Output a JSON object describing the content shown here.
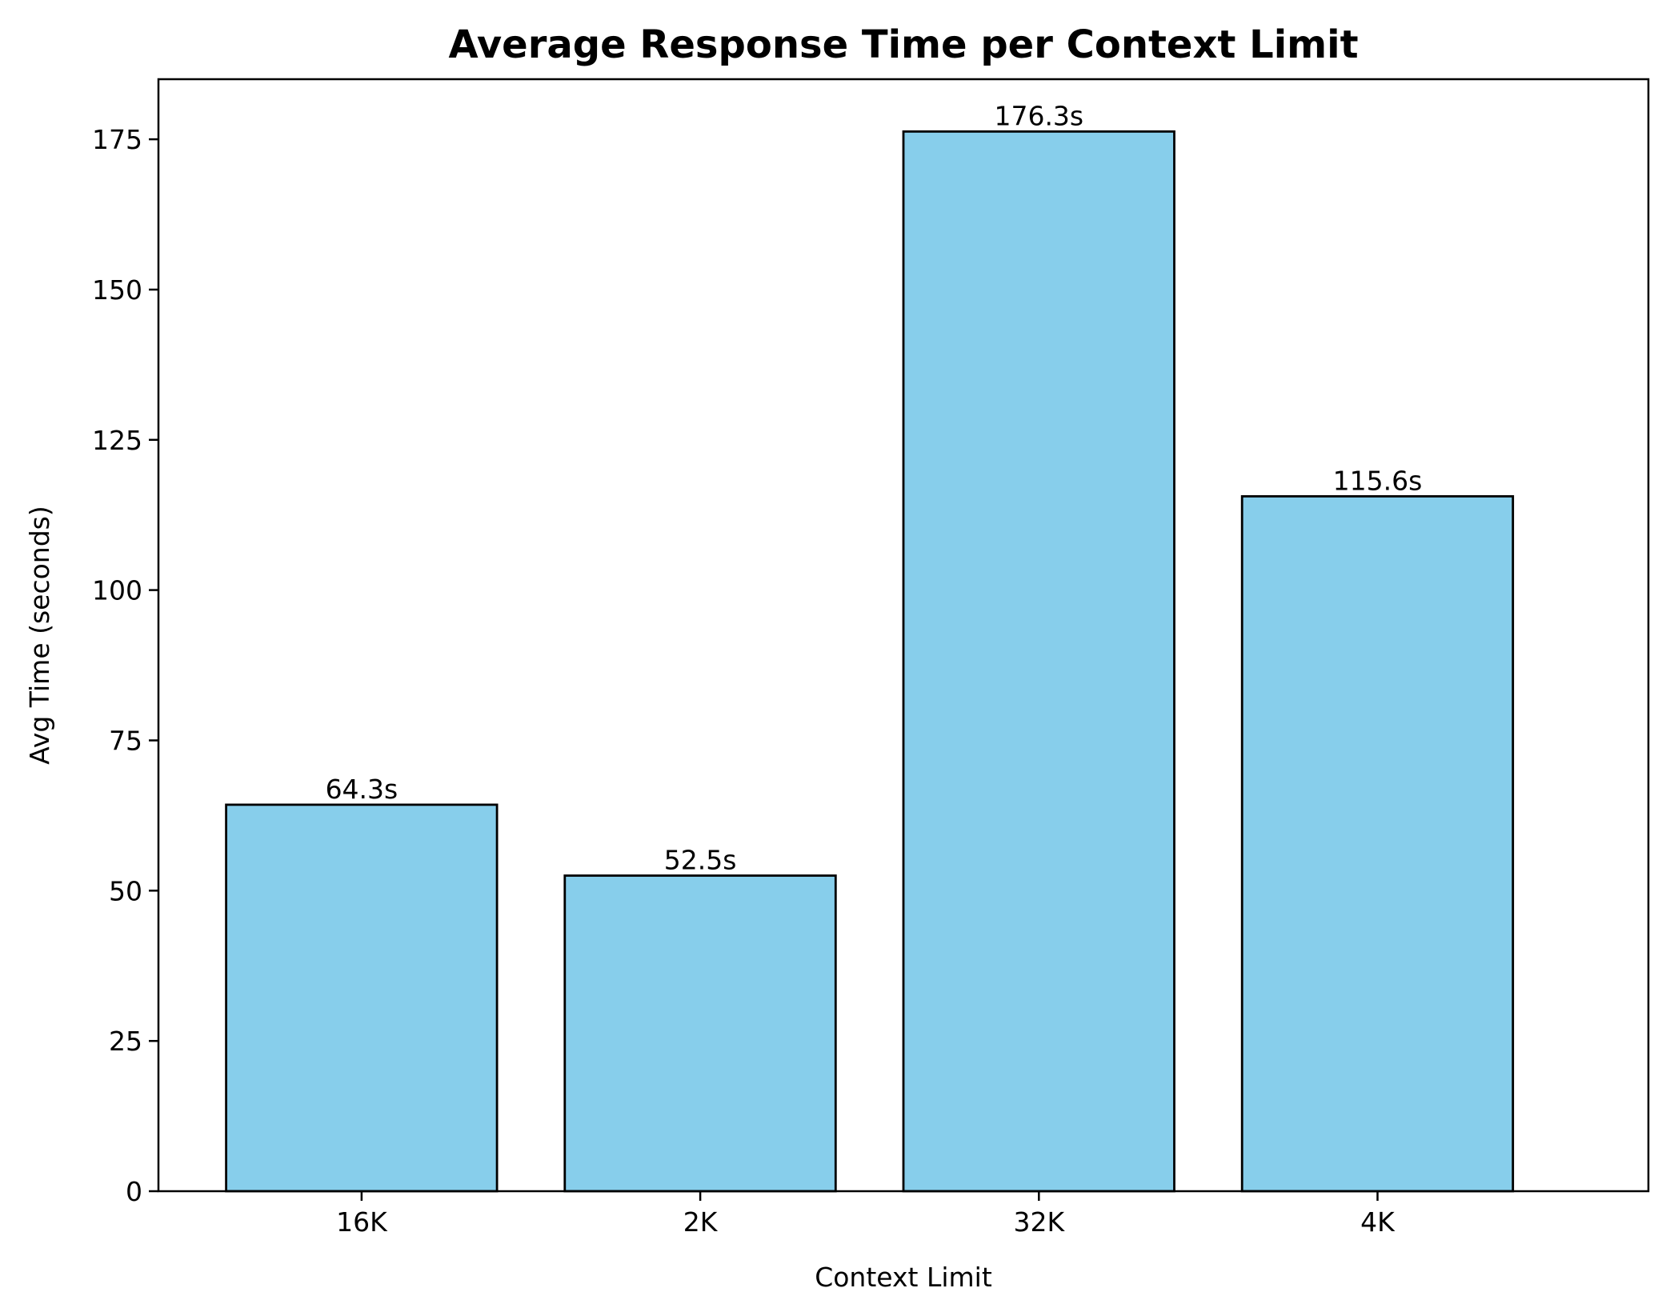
{
  "chart_data": {
    "type": "bar",
    "title": "Average Response Time per Context Limit",
    "xlabel": "Context Limit",
    "ylabel": "Avg Time (seconds)",
    "categories": [
      "16K",
      "2K",
      "32K",
      "4K"
    ],
    "values": [
      64.3,
      52.5,
      176.3,
      115.6
    ],
    "data_labels": [
      "64.3s",
      "52.5s",
      "176.3s",
      "115.6s"
    ],
    "ylim": [
      0,
      185
    ],
    "yticks": [
      0,
      25,
      50,
      75,
      100,
      125,
      150,
      175
    ],
    "grid": false,
    "legend": "none",
    "bar_color": "#87CEEB",
    "bar_edge_color": "#000000"
  }
}
